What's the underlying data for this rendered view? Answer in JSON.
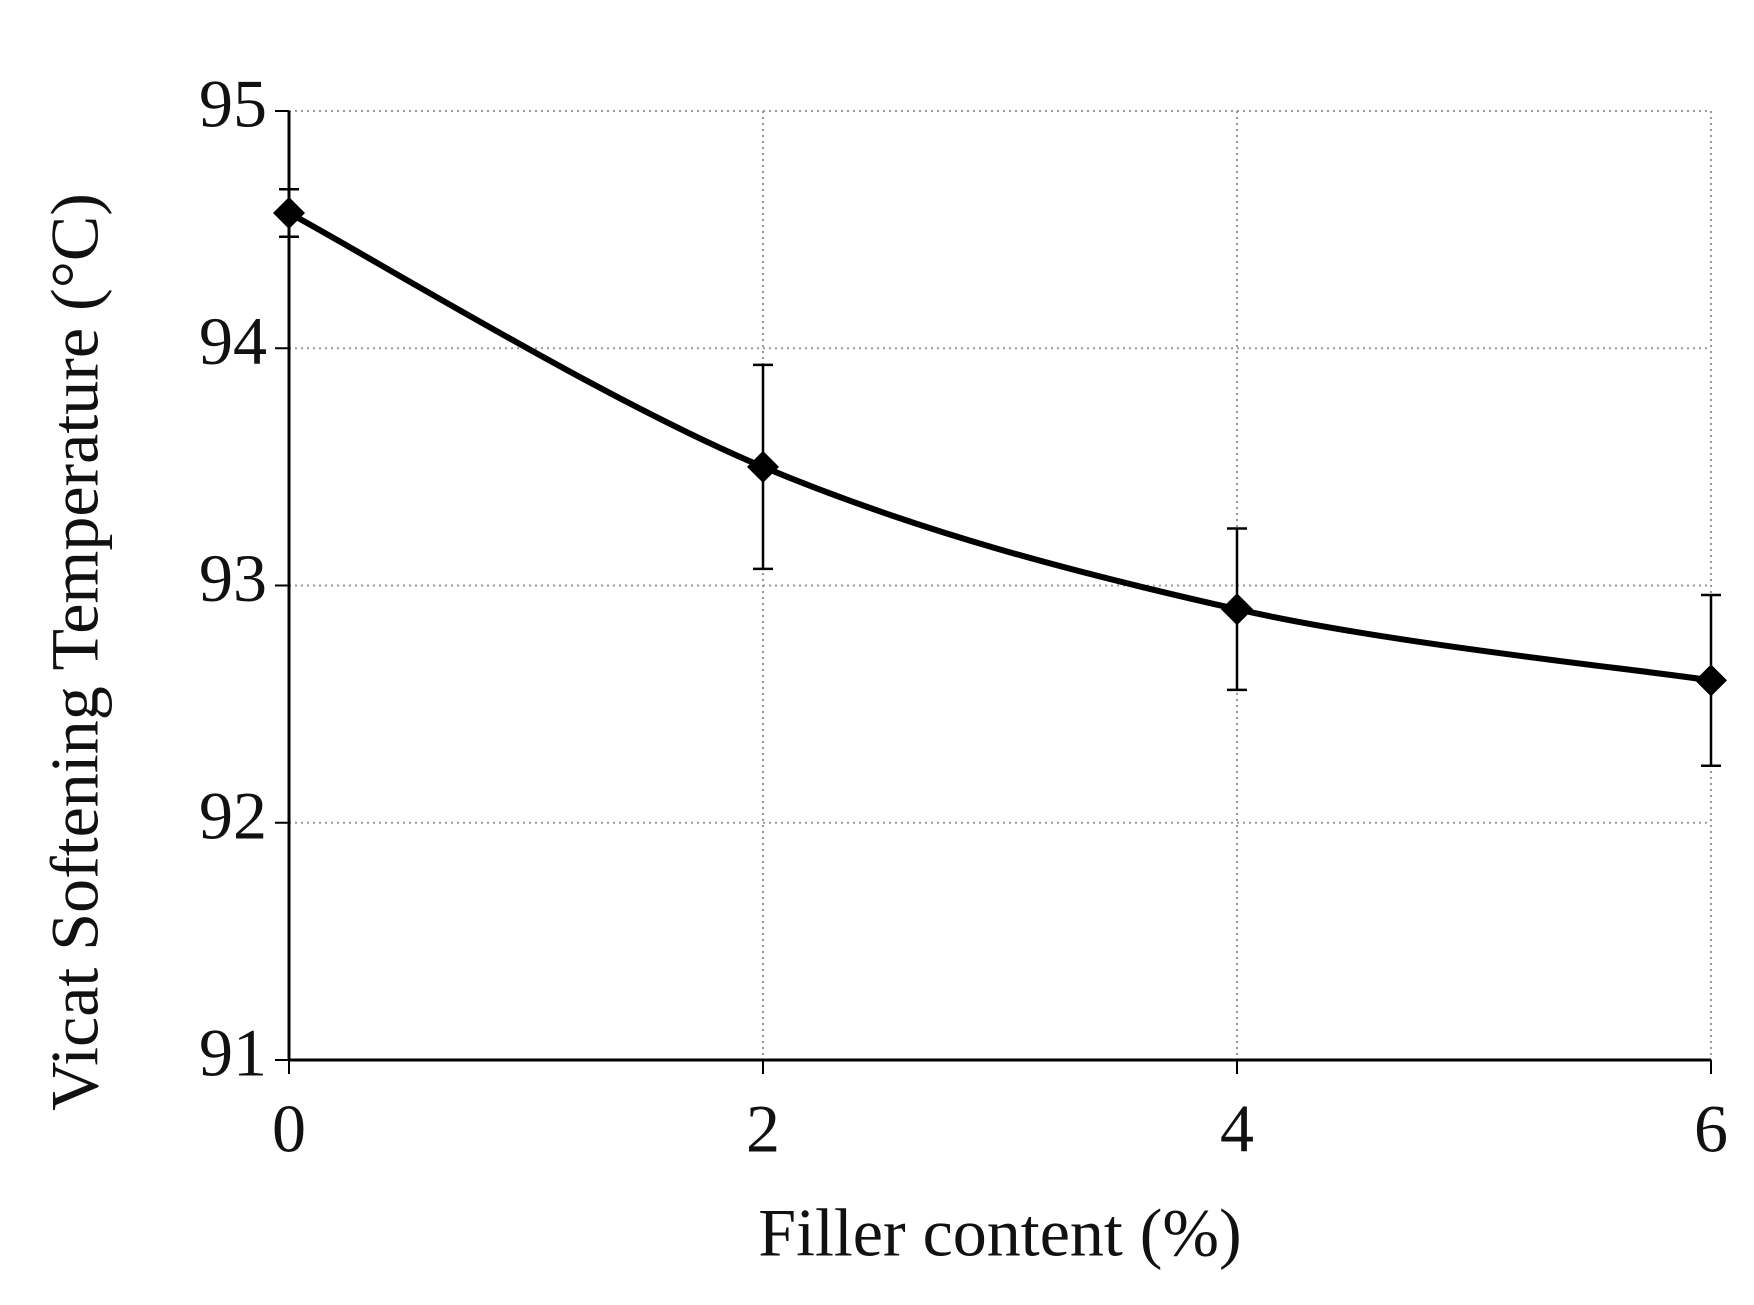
{
  "chart_data": {
    "type": "line",
    "x_label": "Filler content (%)",
    "y_label": "Vicat Softening Temperature (°C)",
    "x": [
      0,
      2,
      4,
      6
    ],
    "series": [
      {
        "color": "#000000",
        "values": [
          94.57,
          93.5,
          92.9,
          92.6
        ],
        "errors": [
          0.1,
          0.43,
          0.34,
          0.36
        ]
      }
    ],
    "xlim": [
      0,
      6
    ],
    "xticks": [
      0,
      2,
      4,
      6
    ],
    "ylim": [
      91,
      95
    ],
    "yticks": [
      91,
      92,
      93,
      94,
      95
    ],
    "grid": true
  }
}
